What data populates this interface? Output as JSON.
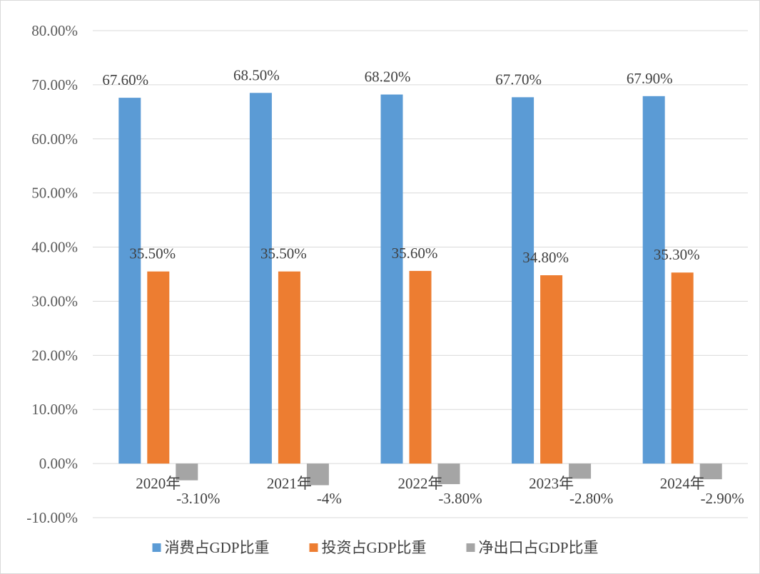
{
  "chart_data": {
    "type": "bar",
    "title": "",
    "xlabel": "",
    "ylabel": "",
    "categories": [
      "2020年",
      "2021年",
      "2022年",
      "2023年",
      "2024年"
    ],
    "series": [
      {
        "name": "消费占GDP比重",
        "color": "#5b9bd5",
        "values": [
          67.6,
          68.5,
          68.2,
          67.7,
          67.9
        ],
        "labels": [
          "67.60%",
          "68.50%",
          "68.20%",
          "67.70%",
          "67.90%"
        ]
      },
      {
        "name": "投资占GDP比重",
        "color": "#ed7d31",
        "values": [
          35.5,
          35.5,
          35.6,
          34.8,
          35.3
        ],
        "labels": [
          "35.50%",
          "35.50%",
          "35.60%",
          "34.80%",
          "35.30%"
        ]
      },
      {
        "name": "净出口占GDP比重",
        "color": "#a5a5a5",
        "values": [
          -3.1,
          -4,
          -3.8,
          -2.8,
          -2.9
        ],
        "labels": [
          "-3.10%",
          "-4%",
          "-3.80%",
          "-2.80%",
          "-2.90%"
        ]
      }
    ],
    "ylim": [
      -10,
      80
    ],
    "yticks": [
      -10,
      0,
      10,
      20,
      30,
      40,
      50,
      60,
      70,
      80
    ],
    "ytick_labels": [
      "-10.00%",
      "0.00%",
      "10.00%",
      "20.00%",
      "30.00%",
      "40.00%",
      "50.00%",
      "60.00%",
      "70.00%",
      "80.00%"
    ],
    "grid": true,
    "legend_position": "bottom"
  }
}
